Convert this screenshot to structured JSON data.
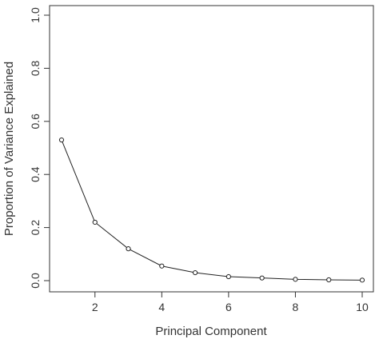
{
  "chart_data": {
    "type": "line",
    "title": "",
    "xlabel": "Principal Component",
    "ylabel": "Proportion of Variance Explained",
    "x": [
      1,
      2,
      3,
      4,
      5,
      6,
      7,
      8,
      9,
      10
    ],
    "series": [
      {
        "values": [
          0.53,
          0.22,
          0.12,
          0.055,
          0.03,
          0.015,
          0.01,
          0.005,
          0.003,
          0.002
        ]
      }
    ],
    "xlim": [
      1,
      10
    ],
    "ylim": [
      0,
      1
    ],
    "xticks": [
      2,
      4,
      6,
      8,
      10
    ],
    "yticks": [
      0.0,
      0.2,
      0.4,
      0.6,
      0.8,
      1.0
    ],
    "xtick_labels": [
      "2",
      "4",
      "6",
      "8",
      "10"
    ],
    "ytick_labels": [
      "0.0",
      "0.2",
      "0.4",
      "0.6",
      "0.8",
      "1.0"
    ],
    "grid": false,
    "legend": "none",
    "marker": "open-circle",
    "colors": {
      "line": "#222222",
      "axis": "#333333",
      "background": "#ffffff"
    }
  }
}
